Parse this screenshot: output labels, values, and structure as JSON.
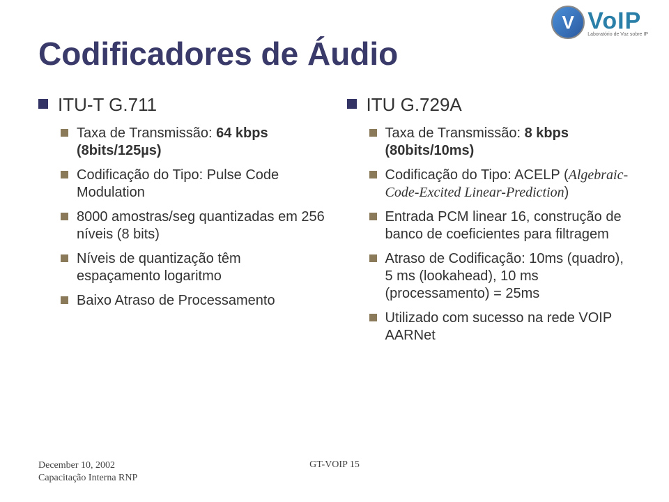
{
  "logo": {
    "text": "VoIP",
    "subtitle": "Laboratório de Voz sobre IP"
  },
  "title": "Codificadores de Áudio",
  "left": {
    "heading": "ITU-T G.711",
    "items": [
      {
        "pre": "Taxa de Transmissão: ",
        "bold": "64 kbps (8bits/125µs)"
      },
      {
        "pre": "Codificação do Tipo: Pulse Code Modulation"
      },
      {
        "pre": "8000 amostras/seg quantizadas em 256 níveis (8 bits)"
      },
      {
        "pre": "Níveis de quantização têm espaçamento logaritmo"
      },
      {
        "pre": "Baixo Atraso de Processamento"
      }
    ]
  },
  "right": {
    "heading": "ITU G.729A",
    "items": [
      {
        "pre": "Taxa de Transmissão: ",
        "bold": "8 kbps (80bits/10ms)"
      },
      {
        "pre": "Codificação do Tipo: ACELP (",
        "italic": "Algebraic-Code-Excited Linear-Prediction",
        "post": ")"
      },
      {
        "pre": "Entrada PCM linear 16, construção de banco de coeficientes para filtragem"
      },
      {
        "pre": "Atraso de Codificação: 10ms (quadro), 5 ms (lookahead), 10 ms (processamento) = 25ms"
      },
      {
        "pre": "Utilizado com sucesso na rede VOIP AARNet"
      }
    ]
  },
  "footer": {
    "date": "December 10, 2002",
    "org": "Capacitação Interna RNP",
    "slide": "GT-VOIP 15"
  }
}
